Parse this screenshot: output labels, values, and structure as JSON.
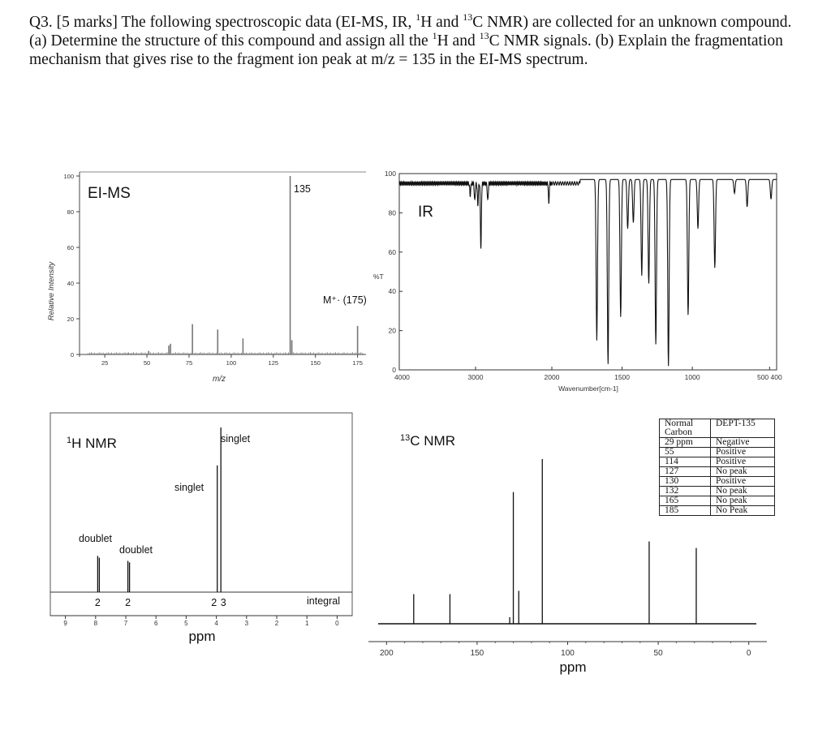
{
  "question": {
    "intro": "Q3. [5 marks] The following spectroscopic data (EI-MS, IR, ",
    "sup_h1": "1",
    "h_and": "H and ",
    "sup_c1": "13",
    "c_nmr_close": "C NMR) are collected for an unknown compound. (a) Determine the structure of this compound and assign all the ",
    "sup_h2": "1",
    "h_and2": "H and ",
    "sup_c2": "13",
    "rest": "C NMR signals. (b) Explain the fragmentation mechanism that gives rise to the fragment ion peak at m/z = 135 in the EI-MS spectrum."
  },
  "chart_data": [
    {
      "type": "bar",
      "title": "EI-MS",
      "xlabel": "m/z",
      "ylabel": "Relative Intensity",
      "xlim": [
        10,
        180
      ],
      "ylim": [
        0,
        100
      ],
      "x_ticks": [
        "25",
        "50",
        "75",
        "100",
        "125",
        "150",
        "175"
      ],
      "y_ticks": [
        "0",
        "20",
        "40",
        "60",
        "80",
        "100"
      ],
      "annotations": [
        "135",
        "M⁺· (175)"
      ],
      "peaks": [
        {
          "mz": 39,
          "intensity": 1
        },
        {
          "mz": 51,
          "intensity": 2
        },
        {
          "mz": 63,
          "intensity": 5
        },
        {
          "mz": 64,
          "intensity": 6
        },
        {
          "mz": 77,
          "intensity": 17
        },
        {
          "mz": 92,
          "intensity": 14
        },
        {
          "mz": 107,
          "intensity": 9
        },
        {
          "mz": 135,
          "intensity": 100
        },
        {
          "mz": 136,
          "intensity": 8
        },
        {
          "mz": 175,
          "intensity": 16
        }
      ]
    },
    {
      "type": "line",
      "title": "IR",
      "xlabel": "Wavenumber[cm-1]",
      "ylabel": "%T",
      "xlim": [
        4000,
        400
      ],
      "ylim": [
        0,
        100
      ],
      "x_ticks": [
        "4000",
        "3000",
        "2000",
        "1500",
        "1000",
        "500 400"
      ],
      "y_ticks": [
        "0",
        "20",
        "40",
        "60",
        "80",
        "100"
      ],
      "bands": [
        {
          "wn": 3070,
          "t": 91
        },
        {
          "wn": 3010,
          "t": 88
        },
        {
          "wn": 2970,
          "t": 86
        },
        {
          "wn": 2930,
          "t": 64
        },
        {
          "wn": 2840,
          "t": 88
        },
        {
          "wn": 2040,
          "t": 86
        },
        {
          "wn": 1680,
          "t": 15
        },
        {
          "wn": 1600,
          "t": 3
        },
        {
          "wn": 1510,
          "t": 27
        },
        {
          "wn": 1460,
          "t": 72
        },
        {
          "wn": 1420,
          "t": 75
        },
        {
          "wn": 1360,
          "t": 48
        },
        {
          "wn": 1310,
          "t": 44
        },
        {
          "wn": 1260,
          "t": 13
        },
        {
          "wn": 1170,
          "t": 2
        },
        {
          "wn": 1030,
          "t": 28
        },
        {
          "wn": 960,
          "t": 72
        },
        {
          "wn": 840,
          "t": 52
        },
        {
          "wn": 700,
          "t": 90
        },
        {
          "wn": 610,
          "t": 83
        },
        {
          "wn": 440,
          "t": 87
        }
      ]
    },
    {
      "type": "bar",
      "title": "1H NMR",
      "xlabel": "ppm",
      "xlim": [
        9.5,
        -0.5
      ],
      "x_ticks": [
        "9",
        "8",
        "7",
        "6",
        "5",
        "4",
        "3",
        "2",
        "1",
        "0"
      ],
      "peaks": [
        {
          "ppm": 7.93,
          "height": 0.22,
          "label": "doublet",
          "integral": "2"
        },
        {
          "ppm": 6.93,
          "height": 0.19,
          "label": "doublet",
          "integral": "2"
        },
        {
          "ppm": 3.97,
          "height": 0.77,
          "label": "singlet",
          "integral": "2"
        },
        {
          "ppm": 3.85,
          "height": 1.0,
          "label": "singlet",
          "integral": "3"
        }
      ],
      "integral_label": "integral"
    },
    {
      "type": "bar",
      "title": "13C NMR",
      "xlabel": "ppm",
      "xlim": [
        210,
        -10
      ],
      "x_ticks": [
        "200",
        "150",
        "100",
        "50",
        "0"
      ],
      "peaks": [
        {
          "ppm": 185,
          "height": 0.18
        },
        {
          "ppm": 165,
          "height": 0.18
        },
        {
          "ppm": 132,
          "height": 0.04
        },
        {
          "ppm": 130,
          "height": 0.8
        },
        {
          "ppm": 127,
          "height": 0.2
        },
        {
          "ppm": 114,
          "height": 1.0
        },
        {
          "ppm": 55,
          "height": 0.5
        },
        {
          "ppm": 29,
          "height": 0.46
        }
      ]
    },
    {
      "type": "table",
      "columns": [
        "Normal Carbon",
        "DEPT-135"
      ],
      "rows": [
        [
          "29 ppm",
          "Negative"
        ],
        [
          "55",
          "Positive"
        ],
        [
          "114",
          "Positive"
        ],
        [
          "127",
          "No peak"
        ],
        [
          "130",
          "Positive"
        ],
        [
          "132",
          "No peak"
        ],
        [
          "165",
          "No peak"
        ],
        [
          "185",
          "No Peak"
        ]
      ]
    }
  ]
}
